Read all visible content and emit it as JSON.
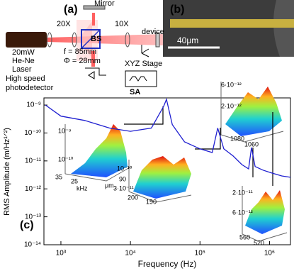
{
  "chart_data": {
    "type": "line",
    "log_x": true,
    "log_y": true,
    "xlabel": "Frequency (Hz)",
    "ylabel": "RMS Amplitude (m/Hz¹ᐟ²)",
    "xlim": [
      570,
      2000000
    ],
    "ylim": [
      1e-14,
      1.8e-09
    ],
    "xticks": [
      {
        "value": 1000,
        "label": "10³"
      },
      {
        "value": 10000,
        "label": "10⁴"
      },
      {
        "value": 100000,
        "label": "10⁵"
      },
      {
        "value": 1000000,
        "label": "10⁶"
      }
    ],
    "yticks": [
      {
        "value": 1e-14,
        "label": "10⁻¹⁴"
      },
      {
        "value": 1e-13,
        "label": "10⁻¹³"
      },
      {
        "value": 1e-12,
        "label": "10⁻¹²"
      },
      {
        "value": 1e-11,
        "label": "10⁻¹¹"
      },
      {
        "value": 1e-10,
        "label": "10⁻¹⁰"
      },
      {
        "value": 1e-09,
        "label": "10⁻⁹"
      }
    ],
    "series": [
      {
        "color": "#1f1fd0",
        "x": [
          600,
          1000,
          2200,
          5000,
          10000,
          20000,
          30000,
          33000,
          40000,
          60000,
          100000,
          150000,
          180000,
          220000,
          300000,
          400000,
          500000,
          550000,
          620000,
          800000,
          1000000,
          1500000,
          2000000
        ],
        "values": [
          1e-09,
          4e-10,
          2.8e-10,
          1.5e-10,
          1.15e-10,
          1.5e-10,
          9e-10,
          1.6e-09,
          2e-10,
          4.8e-11,
          2.7e-11,
          2e-11,
          1.5e-10,
          2.7e-11,
          1.5e-11,
          7.4e-12,
          5.2e-12,
          3e-11,
          6.3e-12,
          4.7e-12,
          3.9e-12,
          2.9e-12,
          2.6e-12
        ]
      }
    ],
    "annotations": [
      "(a)",
      "(b)",
      "(c)",
      "20X",
      "10X",
      "Mirror",
      "BS",
      "device",
      "20mW",
      "He-Ne",
      "Laser",
      "f = 85mm",
      "Φ = 28mm",
      "XYZ Stage",
      "SA",
      "High speed",
      "photodetector",
      "40μm",
      "10⁻⁹",
      "10⁻¹⁰",
      "35",
      "25",
      "kHz",
      "μm",
      "90",
      "10⁻¹⁰",
      "3·10⁻¹¹",
      "200",
      "190",
      "6·10⁻¹²",
      "2·10⁻¹²",
      "1080",
      "1060",
      "2·10⁻¹¹",
      "6·10⁻¹²",
      "560",
      "520"
    ]
  }
}
